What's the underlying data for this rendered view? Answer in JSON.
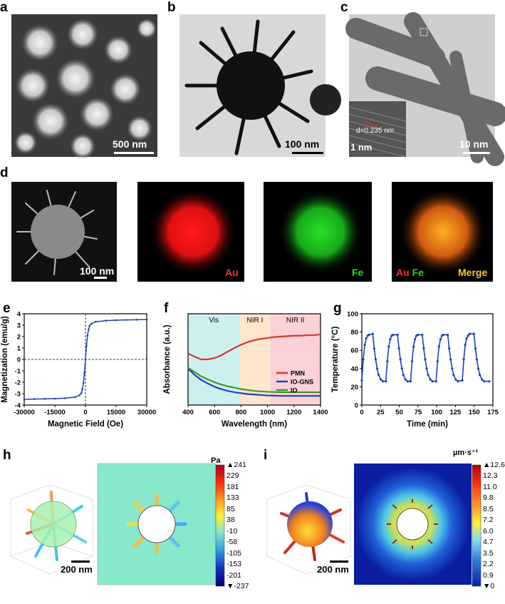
{
  "panel_labels": {
    "a": "a",
    "b": "b",
    "c": "c",
    "d": "d",
    "e": "e",
    "f": "f",
    "g": "g",
    "h": "h",
    "i": "i"
  },
  "panel_a": {
    "scale_text": "500 nm"
  },
  "panel_b": {
    "scale_text": "100 nm"
  },
  "panel_c": {
    "scale_text": "10 nm",
    "inset_scale_text": "1 nm",
    "d_spacing_text": "d=0.235 nm"
  },
  "panel_d": {
    "scale_text": "100 nm",
    "au_label": "Au",
    "fe_label": "Fe",
    "merge_au": "Au",
    "merge_fe": "Fe",
    "merge_label": "Merge",
    "colors": {
      "au": "#ff1a1a",
      "fe": "#22dd22",
      "merge": "#ffcc22"
    }
  },
  "panel_h": {
    "unit": "Pa",
    "scale_text": "200 nm",
    "ticks": [
      "241",
      "229",
      "181",
      "133",
      "85",
      "38",
      "-10",
      "-58",
      "-105",
      "-153",
      "-201",
      "-237"
    ]
  },
  "panel_i": {
    "unit": "µm·s⁻¹",
    "scale_text": "200 nm",
    "ticks": [
      "12.6",
      "12.3",
      "11.0",
      "9.8",
      "8.5",
      "7.2",
      "6.0",
      "4.7",
      "3.5",
      "2.2",
      "0.9",
      "0"
    ]
  },
  "chart_data": [
    {
      "panel": "e",
      "type": "line",
      "xlabel": "Magnetic Field (Oe)",
      "ylabel": "Magnetization (emu/g)",
      "xlim": [
        -30000,
        30000
      ],
      "ylim": [
        -4,
        4
      ],
      "xticks": [
        "-30000",
        "-15000",
        "0",
        "15000",
        "30000"
      ],
      "yticks": [
        "-4",
        "-3",
        "-2",
        "-1",
        "0",
        "1",
        "2",
        "3",
        "4"
      ],
      "color": "#1f3fbf",
      "x": [
        -30000,
        -25000,
        -20000,
        -15000,
        -10000,
        -5000,
        -3000,
        -2000,
        -1500,
        -1000,
        -500,
        0,
        500,
        1000,
        1500,
        2000,
        3000,
        5000,
        10000,
        15000,
        20000,
        25000,
        30000
      ],
      "y": [
        -3.5,
        -3.48,
        -3.46,
        -3.44,
        -3.4,
        -3.3,
        -3.15,
        -2.95,
        -2.6,
        -2.1,
        -1.2,
        0,
        1.2,
        2.1,
        2.6,
        2.95,
        3.15,
        3.3,
        3.4,
        3.44,
        3.46,
        3.48,
        3.5
      ]
    },
    {
      "panel": "f",
      "type": "line",
      "xlabel": "Wavelength (nm)",
      "ylabel": "Absorbance (a.u.)",
      "xlim": [
        400,
        1400
      ],
      "ylim": [
        0,
        2
      ],
      "xticks": [
        "400",
        "600",
        "800",
        "1000",
        "1200",
        "1400"
      ],
      "regions": [
        {
          "label": "Vis",
          "from": 400,
          "to": 790,
          "color": "#ccf0f0"
        },
        {
          "label": "NIR I",
          "from": 790,
          "to": 1020,
          "color": "#fde6cc"
        },
        {
          "label": "NIR II",
          "from": 1020,
          "to": 1400,
          "color": "#fbd0d6"
        }
      ],
      "legend_position": "bottom-right",
      "x": [
        400,
        450,
        500,
        550,
        600,
        650,
        700,
        750,
        800,
        850,
        900,
        950,
        1000,
        1050,
        1100,
        1150,
        1200,
        1250,
        1300,
        1350,
        1400
      ],
      "series": [
        {
          "name": "PMN",
          "color": "#d8382e",
          "values": [
            1.13,
            1.06,
            1.0,
            1.0,
            1.03,
            1.09,
            1.17,
            1.25,
            1.32,
            1.38,
            1.42,
            1.45,
            1.47,
            1.49,
            1.5,
            1.51,
            1.52,
            1.52,
            1.53,
            1.53,
            1.55
          ]
        },
        {
          "name": "IO-GNS",
          "color": "#2a3cc0",
          "values": [
            0.8,
            0.66,
            0.55,
            0.47,
            0.4,
            0.35,
            0.31,
            0.28,
            0.26,
            0.24,
            0.23,
            0.22,
            0.21,
            0.205,
            0.2,
            0.2,
            0.2,
            0.2,
            0.2,
            0.2,
            0.2
          ]
        },
        {
          "name": "IO",
          "color": "#3a9a2a",
          "values": [
            0.82,
            0.72,
            0.63,
            0.56,
            0.5,
            0.45,
            0.41,
            0.38,
            0.35,
            0.33,
            0.31,
            0.3,
            0.29,
            0.285,
            0.28,
            0.28,
            0.28,
            0.28,
            0.28,
            0.28,
            0.28
          ]
        }
      ]
    },
    {
      "panel": "g",
      "type": "line",
      "xlabel": "Time (min)",
      "ylabel": "Temperature (°C)",
      "xlim": [
        0,
        180
      ],
      "ylim": [
        0,
        100
      ],
      "xticks": [
        "0",
        "25",
        "50",
        "75",
        "100",
        "125",
        "150",
        "175"
      ],
      "yticks": [
        "0",
        "20",
        "40",
        "60",
        "80",
        "100"
      ],
      "color": "#1f3fbf",
      "x": [
        0,
        2,
        4,
        6,
        8,
        10,
        15,
        17,
        19,
        21,
        23,
        26,
        29,
        33,
        35,
        37,
        39,
        41,
        43,
        49,
        51,
        53,
        55,
        57,
        60,
        63,
        67,
        69,
        71,
        73,
        75,
        77,
        83,
        85,
        87,
        89,
        91,
        94,
        97,
        102,
        104,
        106,
        108,
        110,
        112,
        118,
        120,
        122,
        124,
        126,
        129,
        132,
        138,
        140,
        142,
        144,
        146,
        148,
        154,
        156,
        158,
        160,
        162,
        165,
        168,
        175
      ],
      "y": [
        27,
        50,
        66,
        73,
        76,
        77,
        78,
        62,
        50,
        40,
        33,
        28,
        26,
        26,
        48,
        64,
        72,
        76,
        77,
        77,
        62,
        50,
        40,
        33,
        28,
        26,
        26,
        48,
        64,
        72,
        76,
        77,
        77,
        62,
        50,
        40,
        33,
        28,
        26,
        26,
        48,
        64,
        72,
        76,
        77,
        77,
        62,
        50,
        40,
        33,
        28,
        26,
        27,
        50,
        66,
        73,
        76,
        78,
        78,
        62,
        50,
        40,
        33,
        28,
        26,
        26
      ]
    }
  ]
}
